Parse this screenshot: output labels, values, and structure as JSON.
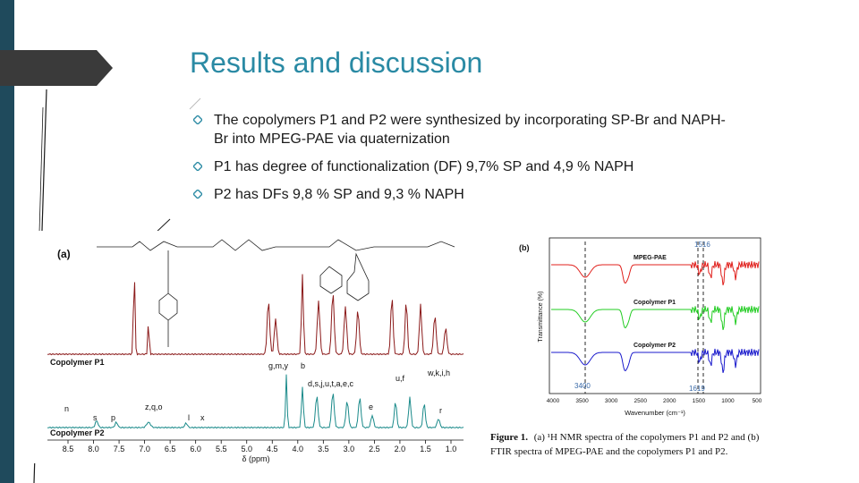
{
  "slide": {
    "title": "Results and discussion",
    "bullets": [
      "The copolymers P1 and P2 were synthesized by incorporating SP-Br and NAPH-Br into MPEG-PAE via quaternization",
      "P1 has degree of functionalization (DF) 9,7% SP and 4,9 % NAPH",
      "P2 has DFs 9,8 % SP and 9,3 % NAPH"
    ],
    "colors": {
      "title": "#2a8aa4",
      "accent_strip": "#1f4a5c",
      "tab": "#3a3a3a"
    }
  },
  "figure_a": {
    "panel_label": "(a)",
    "trace_labels": [
      "Copolymer P1",
      "Copolymer P2"
    ],
    "peak_labels": [
      "g,m,y",
      "b",
      "d,s,j,u,t,a,e,c",
      "u,f",
      "w,k,i,h",
      "n",
      "s",
      "p",
      "z,q,o",
      "l",
      "x",
      "e",
      "r"
    ],
    "x_ticks": [
      "8.5",
      "8.0",
      "7.5",
      "7.0",
      "6.5",
      "6.0",
      "5.5",
      "5.0",
      "4.5",
      "4.0",
      "3.5",
      "3.0",
      "2.5",
      "2.0",
      "1.5",
      "1.0"
    ],
    "x_label": "δ (ppm)",
    "colors": {
      "p1": "#8b1a1a",
      "p2": "#1a8a8a"
    }
  },
  "figure_b": {
    "panel_label": "(b)",
    "trace_labels": [
      "MPEG-PAE",
      "Copolymer P1",
      "Copolymer P2"
    ],
    "annotations": [
      "1516",
      "3400",
      "1619"
    ],
    "x_ticks": [
      "4000",
      "3500",
      "3000",
      "2500",
      "2000",
      "1500",
      "1000",
      "500"
    ],
    "x_label": "Wavenumber (cm⁻¹)",
    "y_label": "Transmittance (%)",
    "colors": {
      "mpeg": "#e0201c",
      "p1": "#22cc22",
      "p2": "#1a1acc",
      "annotation": "#3a6aa8"
    }
  },
  "caption": {
    "prefix": "Figure 1.",
    "line1": "(a) ¹H NMR spectra of the copolymers P1 and P2 and (b)",
    "line2": "FTIR spectra of MPEG-PAE and the copolymers P1 and P2."
  }
}
